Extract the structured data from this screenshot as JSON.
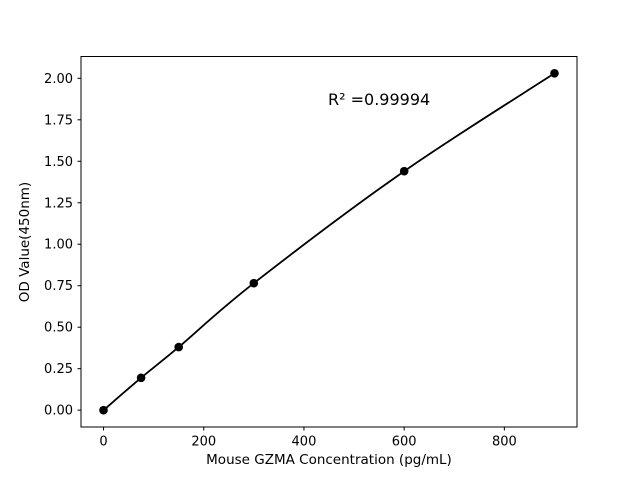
{
  "chart_data": {
    "type": "line",
    "title": "",
    "xlabel": "Mouse GZMA Concentration (pg/mL)",
    "ylabel": "OD Value(450nm)",
    "annotation": "R² =0.99994",
    "x": [
      0,
      75,
      150,
      300,
      600,
      900
    ],
    "y": [
      0.0,
      0.195,
      0.38,
      0.765,
      1.44,
      2.03
    ],
    "xticks": [
      0,
      200,
      400,
      600,
      800
    ],
    "xtick_labels": [
      "0",
      "200",
      "400",
      "600",
      "800"
    ],
    "yticks": [
      0.0,
      0.25,
      0.5,
      0.75,
      1.0,
      1.25,
      1.5,
      1.75,
      2.0
    ],
    "ytick_labels": [
      "0.00",
      "0.25",
      "0.50",
      "0.75",
      "1.00",
      "1.25",
      "1.50",
      "1.75",
      "2.00"
    ],
    "xlim": [
      -45,
      945
    ],
    "ylim": [
      -0.1015,
      2.1315
    ],
    "grid": false,
    "legend": "none",
    "line_color": "#000000",
    "marker_color": "#000000",
    "axis_color": "#000000",
    "text_color": "#000000",
    "background": "#ffffff"
  }
}
